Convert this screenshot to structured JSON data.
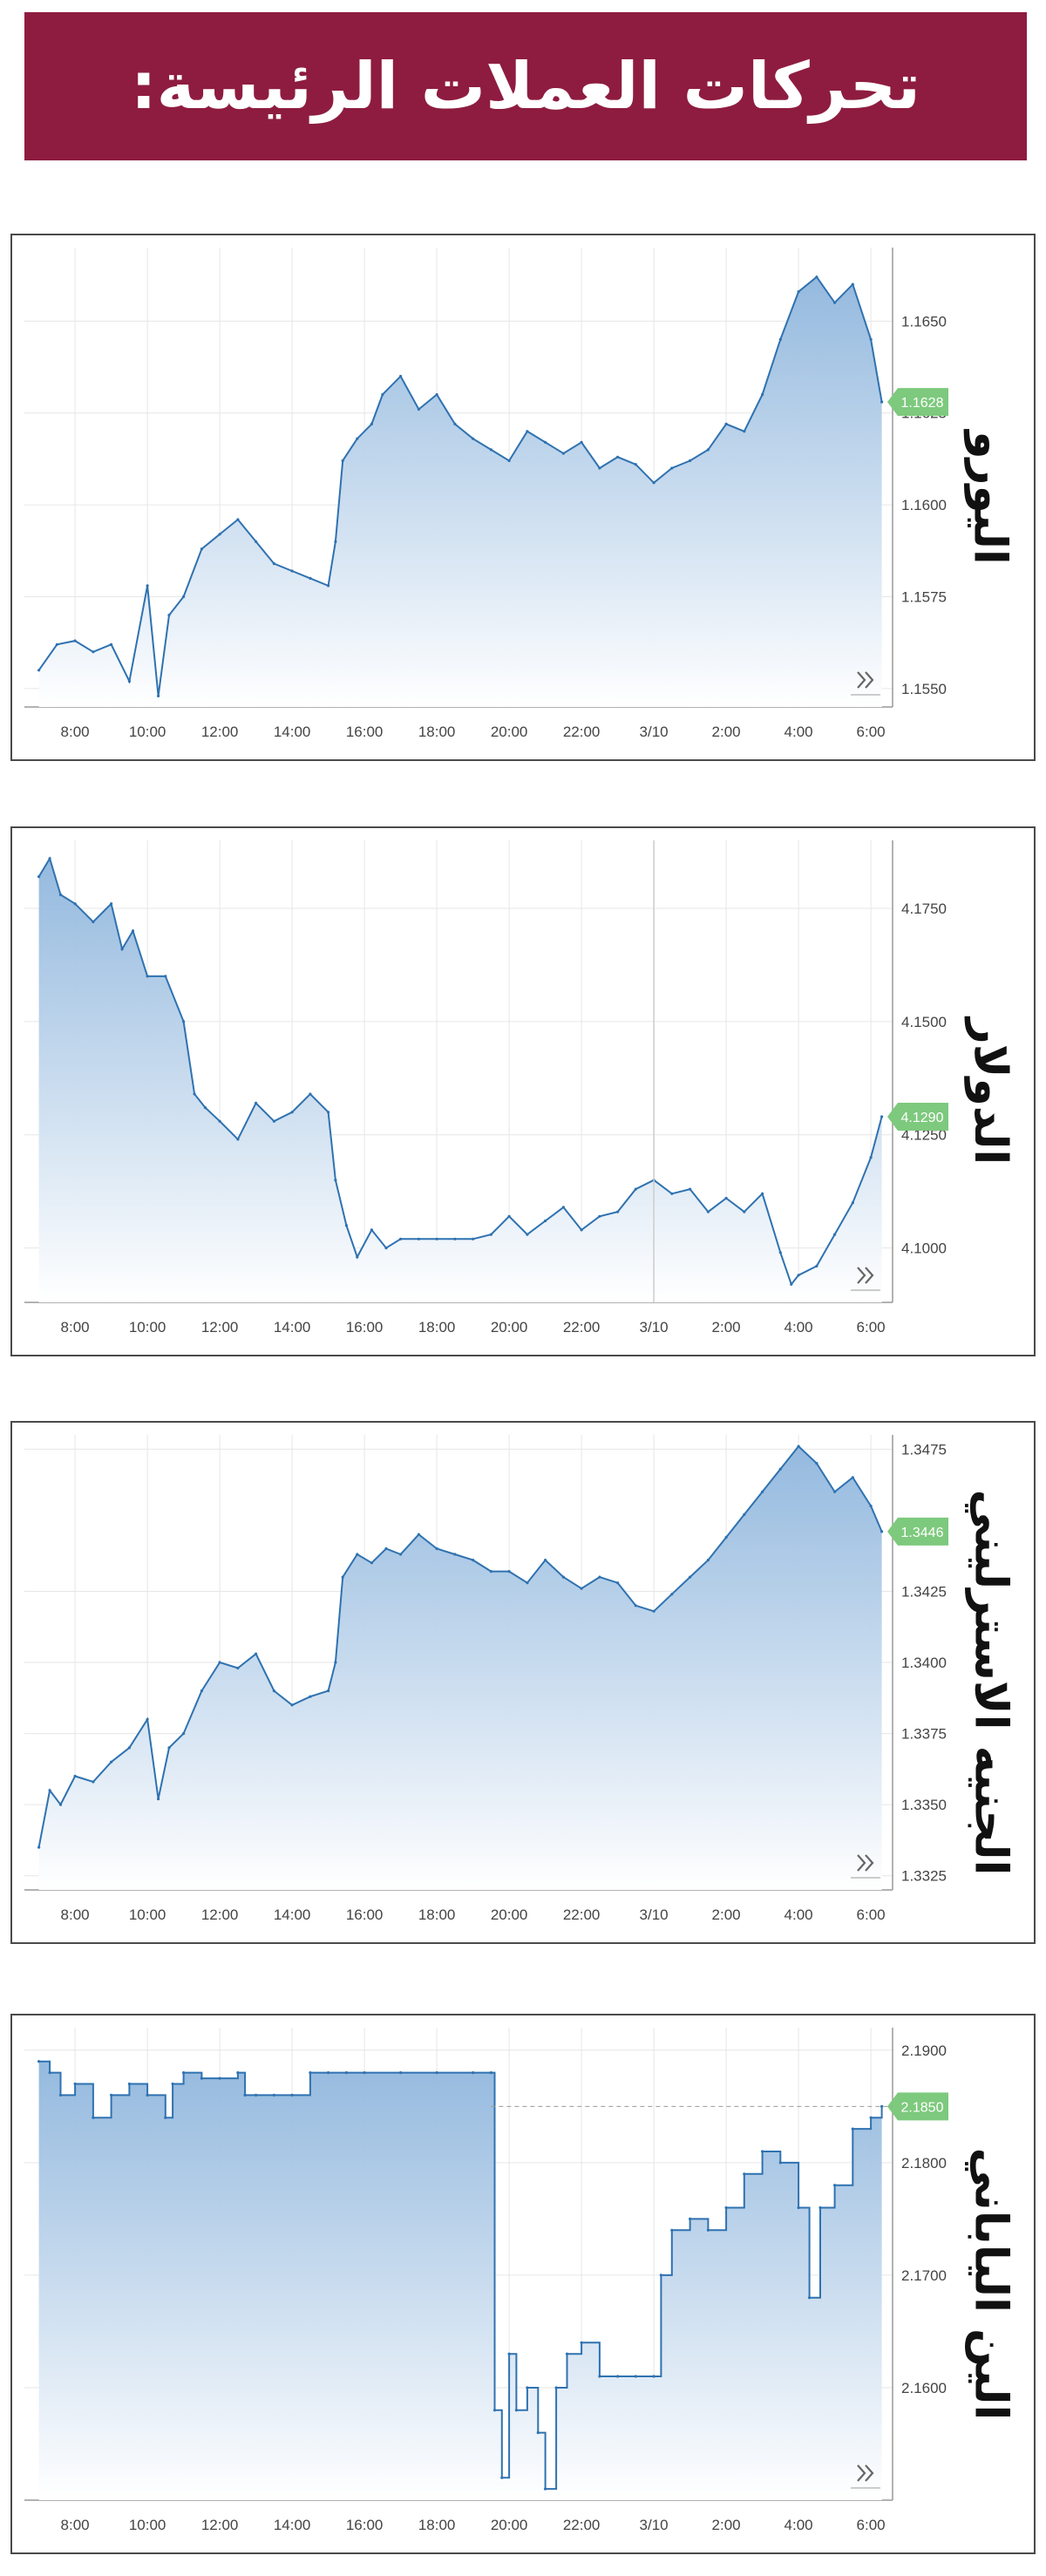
{
  "header": {
    "title": "تحركات العملات الرئيسة:"
  },
  "colors": {
    "line": "#2f72b0",
    "fill_top": "#8fb6dd",
    "fill_bottom": "#ffffff",
    "badge": "#7dc97d",
    "banner": "#8e1c40",
    "grid": "#e6e6e6"
  },
  "icons": {
    "scroll": "double-chevron-icon"
  },
  "chart_data": [
    {
      "type": "area",
      "title": "اليورو",
      "x_ticks": [
        "8:00",
        "10:00",
        "12:00",
        "14:00",
        "16:00",
        "18:00",
        "20:00",
        "22:00",
        "3/10",
        "2:00",
        "4:00",
        "6:00"
      ],
      "y_ticks": [
        "1.1650",
        "1.1625",
        "1.1600",
        "1.1575",
        "1.1550"
      ],
      "ylim": [
        1.1545,
        1.167
      ],
      "last_value": "1.1628",
      "series": [
        {
          "x": [
            7.0,
            7.5,
            8.0,
            8.5,
            9.0,
            9.5,
            10.0,
            10.3,
            10.6,
            11.0,
            11.5,
            12.0,
            12.5,
            13.0,
            13.5,
            14.0,
            14.5,
            15.0,
            15.2,
            15.4,
            15.8,
            16.2,
            16.5,
            17.0,
            17.5,
            18.0,
            18.5,
            19.0,
            19.5,
            20.0,
            20.5,
            21.0,
            21.5,
            22.0,
            22.5,
            23.0,
            23.5,
            24.0,
            24.5,
            25.0,
            25.5,
            26.0,
            26.5,
            27.0,
            27.5,
            28.0,
            28.5,
            29.0,
            29.5,
            30.0,
            30.3
          ],
          "y": [
            1.1555,
            1.1562,
            1.1563,
            1.156,
            1.1562,
            1.1552,
            1.1578,
            1.1548,
            1.157,
            1.1575,
            1.1588,
            1.1592,
            1.1596,
            1.159,
            1.1584,
            1.1582,
            1.158,
            1.1578,
            1.159,
            1.1612,
            1.1618,
            1.1622,
            1.163,
            1.1635,
            1.1626,
            1.163,
            1.1622,
            1.1618,
            1.1615,
            1.1612,
            1.162,
            1.1617,
            1.1614,
            1.1617,
            1.161,
            1.1613,
            1.1611,
            1.1606,
            1.161,
            1.1612,
            1.1615,
            1.1622,
            1.162,
            1.163,
            1.1645,
            1.1658,
            1.1662,
            1.1655,
            1.166,
            1.1645,
            1.1628
          ]
        }
      ]
    },
    {
      "type": "area",
      "title": "الدولار",
      "x_ticks": [
        "8:00",
        "10:00",
        "12:00",
        "14:00",
        "16:00",
        "18:00",
        "20:00",
        "22:00",
        "3/10",
        "2:00",
        "4:00",
        "6:00"
      ],
      "y_ticks": [
        "4.1750",
        "4.1500",
        "4.1250",
        "4.1000"
      ],
      "ylim": [
        4.088,
        4.19
      ],
      "last_value": "4.1290",
      "series": [
        {
          "x": [
            7.0,
            7.3,
            7.6,
            8.0,
            8.5,
            9.0,
            9.3,
            9.6,
            10.0,
            10.5,
            11.0,
            11.3,
            11.6,
            12.0,
            12.5,
            13.0,
            13.5,
            14.0,
            14.5,
            15.0,
            15.2,
            15.5,
            15.8,
            16.2,
            16.6,
            17.0,
            17.5,
            18.0,
            18.5,
            19.0,
            19.5,
            20.0,
            20.5,
            21.0,
            21.5,
            22.0,
            22.5,
            23.0,
            23.5,
            24.0,
            24.5,
            25.0,
            25.5,
            26.0,
            26.5,
            27.0,
            27.5,
            27.8,
            28.0,
            28.5,
            29.0,
            29.5,
            30.0,
            30.3
          ],
          "y": [
            4.182,
            4.186,
            4.178,
            4.176,
            4.172,
            4.176,
            4.166,
            4.17,
            4.16,
            4.16,
            4.15,
            4.134,
            4.131,
            4.128,
            4.124,
            4.132,
            4.128,
            4.13,
            4.134,
            4.13,
            4.115,
            4.105,
            4.098,
            4.104,
            4.1,
            4.102,
            4.102,
            4.102,
            4.102,
            4.102,
            4.103,
            4.107,
            4.103,
            4.106,
            4.109,
            4.104,
            4.107,
            4.108,
            4.113,
            4.115,
            4.112,
            4.113,
            4.108,
            4.111,
            4.108,
            4.112,
            4.099,
            4.092,
            4.094,
            4.096,
            4.103,
            4.11,
            4.12,
            4.129
          ]
        }
      ]
    },
    {
      "type": "area",
      "title": "الجنيه الاسترليني",
      "x_ticks": [
        "8:00",
        "10:00",
        "12:00",
        "14:00",
        "16:00",
        "18:00",
        "20:00",
        "22:00",
        "3/10",
        "2:00",
        "4:00",
        "6:00"
      ],
      "y_ticks": [
        "1.3475",
        "1.3425",
        "1.3400",
        "1.3375",
        "1.3350",
        "1.3325"
      ],
      "ylim": [
        1.332,
        1.348
      ],
      "last_value": "1.3446",
      "series": [
        {
          "x": [
            7.0,
            7.3,
            7.6,
            8.0,
            8.5,
            9.0,
            9.5,
            10.0,
            10.3,
            10.6,
            11.0,
            11.5,
            12.0,
            12.5,
            13.0,
            13.5,
            14.0,
            14.5,
            15.0,
            15.2,
            15.4,
            15.8,
            16.2,
            16.6,
            17.0,
            17.5,
            18.0,
            18.5,
            19.0,
            19.5,
            20.0,
            20.5,
            21.0,
            21.5,
            22.0,
            22.5,
            23.0,
            23.5,
            24.0,
            24.5,
            25.0,
            25.5,
            26.0,
            26.5,
            27.0,
            27.5,
            28.0,
            28.5,
            29.0,
            29.5,
            30.0,
            30.3
          ],
          "y": [
            1.3335,
            1.3355,
            1.335,
            1.336,
            1.3358,
            1.3365,
            1.337,
            1.338,
            1.3352,
            1.337,
            1.3375,
            1.339,
            1.34,
            1.3398,
            1.3403,
            1.339,
            1.3385,
            1.3388,
            1.339,
            1.34,
            1.343,
            1.3438,
            1.3435,
            1.344,
            1.3438,
            1.3445,
            1.344,
            1.3438,
            1.3436,
            1.3432,
            1.3432,
            1.3428,
            1.3436,
            1.343,
            1.3426,
            1.343,
            1.3428,
            1.342,
            1.3418,
            1.3424,
            1.343,
            1.3436,
            1.3444,
            1.3452,
            1.346,
            1.3468,
            1.3476,
            1.347,
            1.346,
            1.3465,
            1.3455,
            1.3446
          ]
        }
      ]
    },
    {
      "type": "area",
      "title": "الين الياباني",
      "x_ticks": [
        "8:00",
        "10:00",
        "12:00",
        "14:00",
        "16:00",
        "18:00",
        "20:00",
        "22:00",
        "3/10",
        "2:00",
        "4:00",
        "6:00"
      ],
      "y_ticks": [
        "2.1900",
        "2.1800",
        "2.1700",
        "2.1600"
      ],
      "ylim": [
        2.15,
        2.192
      ],
      "last_value": "2.1850",
      "series": [
        {
          "x": [
            7.0,
            7.3,
            7.6,
            8.0,
            8.5,
            9.0,
            9.5,
            10.0,
            10.5,
            10.7,
            11.0,
            11.5,
            12.0,
            12.5,
            12.7,
            13.0,
            13.5,
            14.0,
            14.5,
            15.0,
            15.5,
            16.0,
            17.0,
            18.0,
            19.0,
            19.5,
            19.6,
            19.8,
            20.0,
            20.2,
            20.5,
            20.8,
            21.0,
            21.3,
            21.6,
            22.0,
            22.5,
            23.0,
            23.5,
            24.0,
            24.2,
            24.5,
            25.0,
            25.5,
            26.0,
            26.5,
            27.0,
            27.5,
            28.0,
            28.3,
            28.6,
            29.0,
            29.5,
            30.0,
            30.3
          ],
          "y": [
            2.189,
            2.188,
            2.186,
            2.187,
            2.184,
            2.186,
            2.187,
            2.186,
            2.184,
            2.187,
            2.188,
            2.1875,
            2.1875,
            2.188,
            2.186,
            2.186,
            2.186,
            2.186,
            2.188,
            2.188,
            2.188,
            2.188,
            2.188,
            2.188,
            2.188,
            2.188,
            2.158,
            2.152,
            2.163,
            2.158,
            2.16,
            2.156,
            2.151,
            2.16,
            2.163,
            2.164,
            2.161,
            2.161,
            2.161,
            2.161,
            2.17,
            2.174,
            2.175,
            2.174,
            2.176,
            2.179,
            2.181,
            2.18,
            2.176,
            2.168,
            2.176,
            2.178,
            2.183,
            2.184,
            2.185
          ]
        }
      ]
    }
  ]
}
